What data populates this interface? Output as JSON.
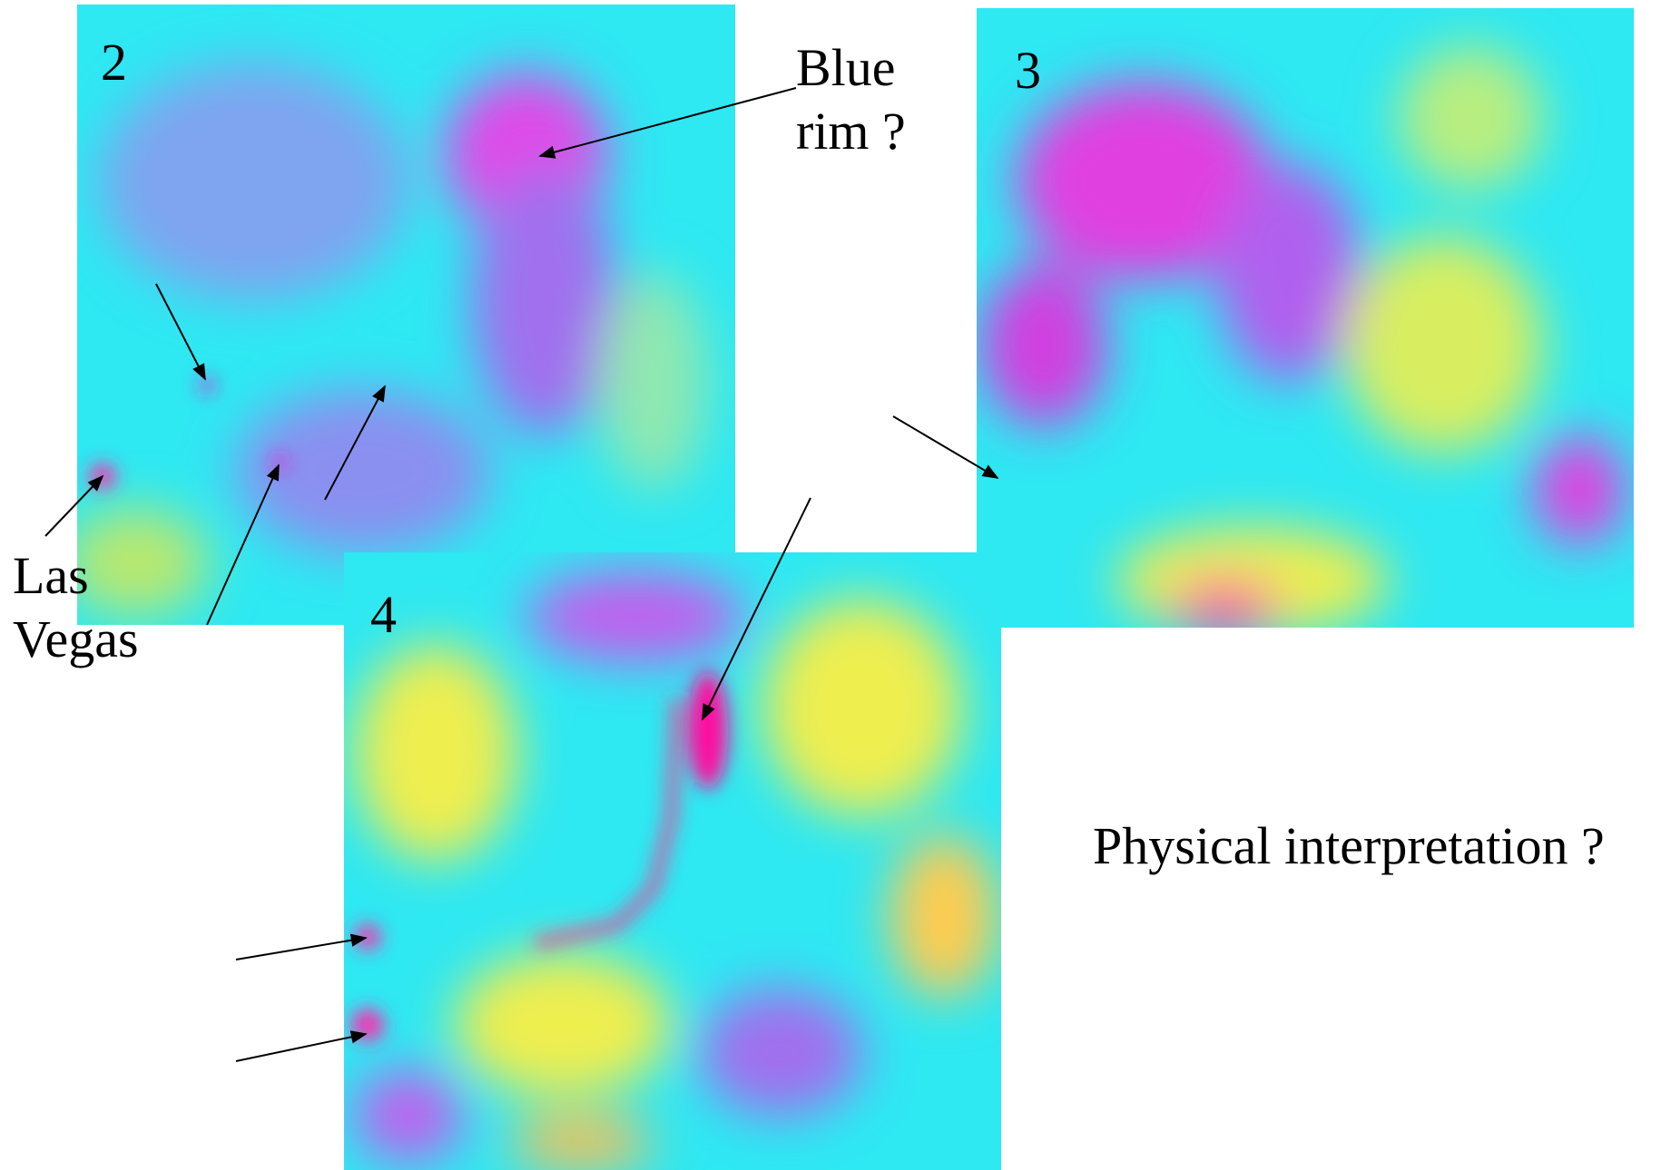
{
  "panels": [
    {
      "label": "2"
    },
    {
      "label": "3"
    },
    {
      "label": "4"
    }
  ],
  "annotations": {
    "blue_rim": [
      "Blue",
      "rim ?"
    ],
    "las_vegas": [
      "Las",
      "Vegas"
    ],
    "question": "Physical interpretation ?"
  }
}
